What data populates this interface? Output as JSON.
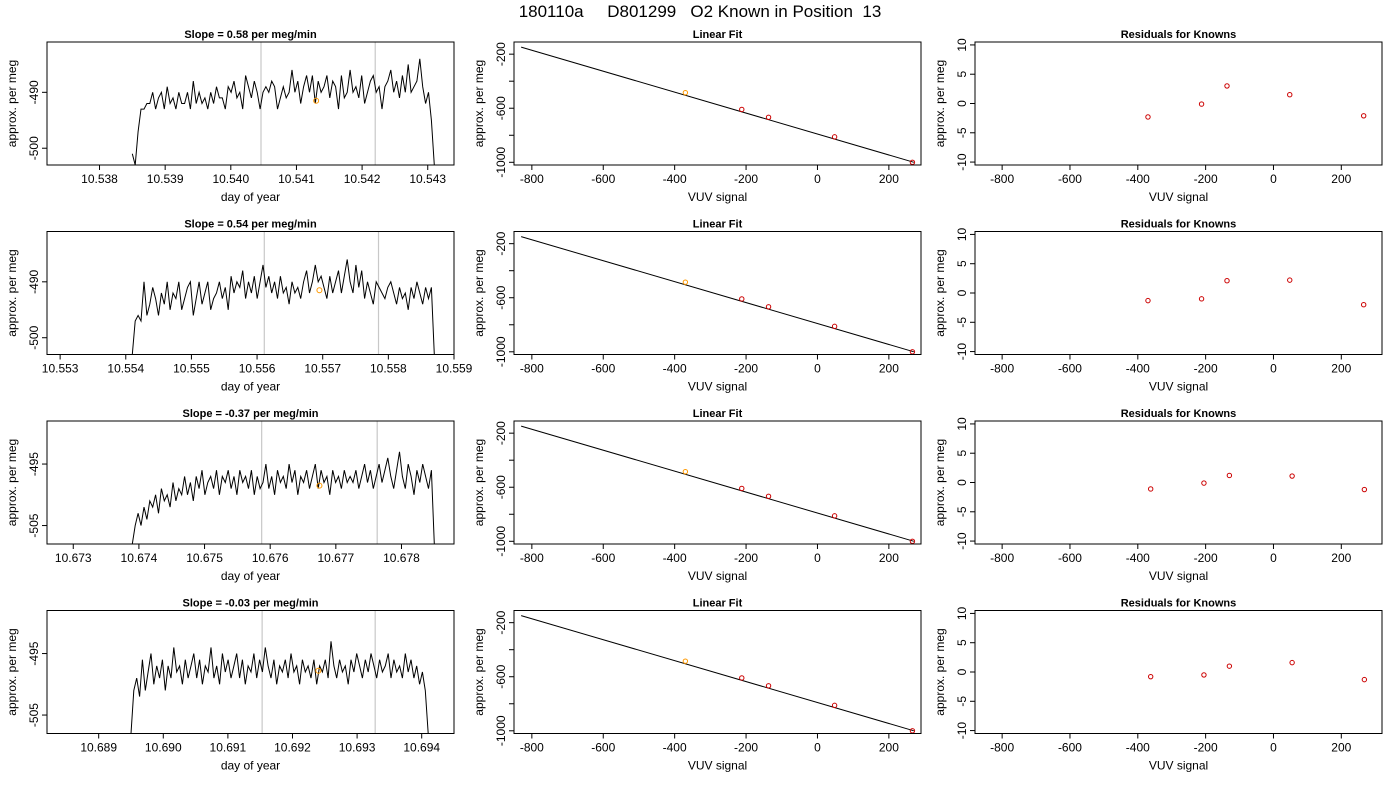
{
  "figure": {
    "title": "180110a     D801299   O2 Known in Position  13"
  },
  "chart_data": [
    {
      "type": "line",
      "row": 0,
      "column": 0,
      "title": "Slope =  0.58  per meg/min",
      "xlabel": "day of year",
      "ylabel": "approx. per meg",
      "xlim": [
        10.5372,
        10.5434
      ],
      "ylim": [
        -503,
        -481
      ],
      "xticks": [
        10.538,
        10.539,
        10.54,
        10.541,
        10.542,
        10.543
      ],
      "xtick_labels": [
        "10.538",
        "10.539",
        "10.540",
        "10.541",
        "10.542",
        "10.543"
      ],
      "yticks": [
        -500,
        -490
      ],
      "ytick_labels": [
        "-500",
        "-490"
      ],
      "vlines": [
        10.54046,
        10.5422
      ],
      "highlight_point": {
        "x": 10.5413,
        "y": -491.5
      },
      "series": [
        {
          "x_start": 10.5385,
          "x_end": 10.5431,
          "values": [
            -501,
            -503,
            -497,
            -493,
            -493,
            -492,
            -492,
            -490,
            -493,
            -491,
            -490,
            -493,
            -489,
            -492,
            -491,
            -493,
            -490,
            -492,
            -492,
            -490,
            -493,
            -488,
            -492,
            -490,
            -492,
            -491,
            -493,
            -490,
            -492,
            -489,
            -491,
            -491,
            -493,
            -489,
            -490,
            -488,
            -491,
            -490,
            -493,
            -487,
            -489,
            -491,
            -488,
            -490,
            -493,
            -490,
            -489,
            -490,
            -488,
            -489,
            -493,
            -491,
            -489,
            -491,
            -490,
            -486,
            -490,
            -488,
            -492,
            -489,
            -487,
            -490,
            -487,
            -492,
            -488,
            -490,
            -489,
            -487,
            -491,
            -488,
            -489,
            -493,
            -487,
            -491,
            -490,
            -486,
            -490,
            -489,
            -491,
            -487,
            -492,
            -490,
            -488,
            -487,
            -490,
            -489,
            -493,
            -489,
            -488,
            -486,
            -490,
            -488,
            -491,
            -487,
            -490,
            -485,
            -490,
            -489,
            -488,
            -484,
            -489,
            -492,
            -490,
            -495,
            -503
          ]
        }
      ]
    },
    {
      "type": "scatter",
      "row": 0,
      "column": 1,
      "title": "Linear Fit",
      "xlabel": "VUV signal",
      "ylabel": "approx. per meg",
      "xlim": [
        -850,
        290
      ],
      "ylim": [
        -1020,
        -110
      ],
      "xticks": [
        -800,
        -600,
        -400,
        -200,
        0,
        200
      ],
      "xtick_labels": [
        "-800",
        "-600",
        "-400",
        "-200",
        "0",
        "200"
      ],
      "yticks": [
        -1000,
        -600,
        -200
      ],
      "ytick_labels": [
        "-1000",
        "-600",
        "-200"
      ],
      "fit_line": {
        "x": [
          -830,
          270
        ],
        "y": [
          -148,
          -1000
        ]
      },
      "points": {
        "x": [
          -370,
          -212,
          -137,
          48,
          266
        ],
        "y": [
          -485,
          -609,
          -667,
          -812,
          -1000
        ]
      },
      "highlight_index": 0
    },
    {
      "type": "scatter",
      "row": 0,
      "column": 2,
      "title": "Residuals for Knowns",
      "xlabel": "VUV signal",
      "ylabel": "approx. per meg",
      "xlim": [
        -880,
        320
      ],
      "ylim": [
        -10.5,
        10.5
      ],
      "xticks": [
        -800,
        -600,
        -400,
        -200,
        0,
        200
      ],
      "xtick_labels": [
        "-800",
        "-600",
        "-400",
        "-200",
        "0",
        "200"
      ],
      "yticks": [
        -10,
        -5,
        0,
        5,
        10
      ],
      "ytick_labels": [
        "-10",
        "-5",
        "0",
        "5",
        "10"
      ],
      "points": {
        "x": [
          -370,
          -212,
          -137,
          48,
          266
        ],
        "y": [
          -2.3,
          -0.1,
          3.0,
          1.5,
          -2.1
        ]
      }
    },
    {
      "type": "line",
      "row": 1,
      "column": 0,
      "title": "Slope =  0.54  per meg/min",
      "xlabel": "day of year",
      "ylabel": "approx. per meg",
      "xlim": [
        10.5528,
        10.559
      ],
      "ylim": [
        -503,
        -481
      ],
      "xticks": [
        10.553,
        10.554,
        10.555,
        10.556,
        10.557,
        10.558,
        10.559
      ],
      "xtick_labels": [
        "10.553",
        "10.554",
        "10.555",
        "10.556",
        "10.557",
        "10.558",
        "10.559"
      ],
      "yticks": [
        -500,
        -490
      ],
      "ytick_labels": [
        "-500",
        "-490"
      ],
      "vlines": [
        10.55611,
        10.55785
      ],
      "highlight_point": {
        "x": 10.55695,
        "y": -491.5
      },
      "series": [
        {
          "x_start": 10.5541,
          "x_end": 10.5587,
          "values": [
            -503,
            -497,
            -496,
            -497,
            -490,
            -496,
            -494,
            -491,
            -493,
            -496,
            -492,
            -494,
            -490,
            -495,
            -492,
            -493,
            -490,
            -495,
            -493,
            -491,
            -490,
            -496,
            -493,
            -490,
            -494,
            -492,
            -490,
            -495,
            -493,
            -492,
            -490,
            -493,
            -491,
            -495,
            -489,
            -492,
            -490,
            -491,
            -488,
            -493,
            -490,
            -492,
            -489,
            -493,
            -490,
            -487,
            -491,
            -489,
            -492,
            -490,
            -493,
            -489,
            -492,
            -491,
            -494,
            -490,
            -492,
            -491,
            -493,
            -490,
            -488,
            -492,
            -490,
            -487,
            -490,
            -489,
            -491,
            -493,
            -489,
            -492,
            -490,
            -488,
            -492,
            -489,
            -486,
            -490,
            -492,
            -487,
            -491,
            -488,
            -493,
            -490,
            -492,
            -494,
            -490,
            -491,
            -492,
            -493,
            -491,
            -490,
            -492,
            -494,
            -491,
            -493,
            -492,
            -495,
            -491,
            -493,
            -490,
            -492,
            -494,
            -491,
            -493,
            -491,
            -503
          ]
        }
      ]
    },
    {
      "type": "scatter",
      "row": 1,
      "column": 1,
      "title": "Linear Fit",
      "xlabel": "VUV signal",
      "ylabel": "approx. per meg",
      "xlim": [
        -850,
        290
      ],
      "ylim": [
        -1020,
        -110
      ],
      "xticks": [
        -800,
        -600,
        -400,
        -200,
        0,
        200
      ],
      "xtick_labels": [
        "-800",
        "-600",
        "-400",
        "-200",
        "0",
        "200"
      ],
      "yticks": [
        -1000,
        -600,
        -200
      ],
      "ytick_labels": [
        "-1000",
        "-600",
        "-200"
      ],
      "fit_line": {
        "x": [
          -830,
          270
        ],
        "y": [
          -148,
          -1000
        ]
      },
      "points": {
        "x": [
          -370,
          -212,
          -137,
          48,
          266
        ],
        "y": [
          -485,
          -609,
          -667,
          -812,
          -1000
        ]
      },
      "highlight_index": 0
    },
    {
      "type": "scatter",
      "row": 1,
      "column": 2,
      "title": "Residuals for Knowns",
      "xlabel": "VUV signal",
      "ylabel": "approx. per meg",
      "xlim": [
        -880,
        320
      ],
      "ylim": [
        -10.5,
        10.5
      ],
      "xticks": [
        -800,
        -600,
        -400,
        -200,
        0,
        200
      ],
      "xtick_labels": [
        "-800",
        "-600",
        "-400",
        "-200",
        "0",
        "200"
      ],
      "yticks": [
        -10,
        -5,
        0,
        5,
        10
      ],
      "ytick_labels": [
        "-10",
        "-5",
        "0",
        "5",
        "10"
      ],
      "points": {
        "x": [
          -370,
          -212,
          -137,
          48,
          266
        ],
        "y": [
          -1.3,
          -1.0,
          2.1,
          2.2,
          -2.0
        ]
      }
    },
    {
      "type": "line",
      "row": 2,
      "column": 0,
      "title": "Slope =  -0.37  per meg/min",
      "xlabel": "day of year",
      "ylabel": "approx. per meg",
      "xlim": [
        10.6726,
        10.6788
      ],
      "ylim": [
        -508,
        -488
      ],
      "xticks": [
        10.673,
        10.674,
        10.675,
        10.676,
        10.677,
        10.678
      ],
      "xtick_labels": [
        "10.673",
        "10.674",
        "10.675",
        "10.676",
        "10.677",
        "10.678"
      ],
      "yticks": [
        -505,
        -495
      ],
      "ytick_labels": [
        "-505",
        "-495"
      ],
      "vlines": [
        10.67587,
        10.67763
      ],
      "highlight_point": {
        "x": 10.67675,
        "y": -498.5
      },
      "series": [
        {
          "x_start": 10.6739,
          "x_end": 10.6785,
          "values": [
            -508,
            -505,
            -503,
            -505,
            -502,
            -504,
            -501,
            -502,
            -500,
            -503,
            -499,
            -501,
            -500,
            -502,
            -498,
            -501,
            -499,
            -500,
            -497,
            -500,
            -498,
            -501,
            -497,
            -499,
            -496,
            -500,
            -498,
            -497,
            -499,
            -496,
            -500,
            -497,
            -498,
            -496,
            -499,
            -497,
            -500,
            -496,
            -498,
            -497,
            -499,
            -496,
            -500,
            -497,
            -499,
            -498,
            -495,
            -499,
            -497,
            -500,
            -496,
            -498,
            -497,
            -499,
            -495,
            -498,
            -496,
            -500,
            -497,
            -498,
            -496,
            -499,
            -497,
            -495,
            -499,
            -496,
            -498,
            -497,
            -500,
            -496,
            -498,
            -497,
            -499,
            -496,
            -498,
            -497,
            -498,
            -496,
            -499,
            -497,
            -495,
            -498,
            -496,
            -499,
            -497,
            -495,
            -498,
            -496,
            -494,
            -497,
            -499,
            -496,
            -493,
            -497,
            -499,
            -495,
            -497,
            -500,
            -496,
            -498,
            -495,
            -497,
            -499,
            -496,
            -508
          ]
        }
      ]
    },
    {
      "type": "scatter",
      "row": 2,
      "column": 1,
      "title": "Linear Fit",
      "xlabel": "VUV signal",
      "ylabel": "approx. per meg",
      "xlim": [
        -850,
        290
      ],
      "ylim": [
        -1020,
        -110
      ],
      "xticks": [
        -800,
        -600,
        -400,
        -200,
        0,
        200
      ],
      "xtick_labels": [
        "-800",
        "-600",
        "-400",
        "-200",
        "0",
        "200"
      ],
      "yticks": [
        -1000,
        -600,
        -200
      ],
      "ytick_labels": [
        "-1000",
        "-600",
        "-200"
      ],
      "fit_line": {
        "x": [
          -830,
          270
        ],
        "y": [
          -148,
          -1000
        ]
      },
      "points": {
        "x": [
          -370,
          -212,
          -137,
          48,
          266
        ],
        "y": [
          -485,
          -609,
          -667,
          -812,
          -1000
        ]
      },
      "highlight_index": 0
    },
    {
      "type": "scatter",
      "row": 2,
      "column": 2,
      "title": "Residuals for Knowns",
      "xlabel": "VUV signal",
      "ylabel": "approx. per meg",
      "xlim": [
        -880,
        320
      ],
      "ylim": [
        -10.5,
        10.5
      ],
      "xticks": [
        -800,
        -600,
        -400,
        -200,
        0,
        200
      ],
      "xtick_labels": [
        "-800",
        "-600",
        "-400",
        "-200",
        "0",
        "200"
      ],
      "yticks": [
        -10,
        -5,
        0,
        5,
        10
      ],
      "ytick_labels": [
        "-10",
        "-5",
        "0",
        "5",
        "10"
      ],
      "points": {
        "x": [
          -362,
          -205,
          -130,
          55,
          268
        ],
        "y": [
          -1.1,
          -0.1,
          1.2,
          1.1,
          -1.2
        ]
      }
    },
    {
      "type": "line",
      "row": 3,
      "column": 0,
      "title": "Slope =  -0.03  per meg/min",
      "xlabel": "day of year",
      "ylabel": "approx. per meg",
      "xlim": [
        10.6882,
        10.6945
      ],
      "ylim": [
        -508,
        -488
      ],
      "xticks": [
        10.689,
        10.69,
        10.691,
        10.692,
        10.693,
        10.694
      ],
      "xtick_labels": [
        "10.689",
        "10.690",
        "10.691",
        "10.692",
        "10.693",
        "10.694"
      ],
      "yticks": [
        -505,
        -495
      ],
      "ytick_labels": [
        "-505",
        "-495"
      ],
      "vlines": [
        10.69153,
        10.69328
      ],
      "highlight_point": {
        "x": 10.6924,
        "y": -497.8
      },
      "series": [
        {
          "x_start": 10.6895,
          "x_end": 10.6941,
          "values": [
            -508,
            -501,
            -499,
            -502,
            -496,
            -501,
            -498,
            -495,
            -500,
            -497,
            -499,
            -496,
            -501,
            -497,
            -499,
            -494,
            -498,
            -497,
            -500,
            -496,
            -499,
            -497,
            -495,
            -499,
            -496,
            -500,
            -497,
            -498,
            -494,
            -499,
            -497,
            -500,
            -495,
            -498,
            -496,
            -499,
            -497,
            -495,
            -499,
            -496,
            -500,
            -497,
            -498,
            -495,
            -499,
            -496,
            -498,
            -494,
            -497,
            -499,
            -496,
            -500,
            -497,
            -498,
            -496,
            -499,
            -495,
            -498,
            -497,
            -500,
            -496,
            -498,
            -497,
            -499,
            -496,
            -500,
            -497,
            -498,
            -496,
            -499,
            -493,
            -497,
            -499,
            -496,
            -498,
            -497,
            -500,
            -496,
            -498,
            -495,
            -497,
            -499,
            -496,
            -498,
            -495,
            -497,
            -499,
            -496,
            -498,
            -497,
            -495,
            -499,
            -496,
            -498,
            -497,
            -499,
            -495,
            -498,
            -496,
            -499,
            -497,
            -500,
            -498,
            -501,
            -508
          ]
        }
      ]
    },
    {
      "type": "scatter",
      "row": 3,
      "column": 1,
      "title": "Linear Fit",
      "xlabel": "VUV signal",
      "ylabel": "approx. per meg",
      "xlim": [
        -850,
        290
      ],
      "ylim": [
        -1020,
        -110
      ],
      "xticks": [
        -800,
        -600,
        -400,
        -200,
        0,
        200
      ],
      "xtick_labels": [
        "-800",
        "-600",
        "-400",
        "-200",
        "0",
        "200"
      ],
      "yticks": [
        -1000,
        -600,
        -200
      ],
      "ytick_labels": [
        "-1000",
        "-600",
        "-200"
      ],
      "fit_line": {
        "x": [
          -830,
          270
        ],
        "y": [
          -148,
          -1000
        ]
      },
      "points": {
        "x": [
          -370,
          -212,
          -137,
          48,
          266
        ],
        "y": [
          -485,
          -609,
          -667,
          -812,
          -1000
        ]
      },
      "highlight_index": 0
    },
    {
      "type": "scatter",
      "row": 3,
      "column": 2,
      "title": "Residuals for Knowns",
      "xlabel": "VUV signal",
      "ylabel": "approx. per meg",
      "xlim": [
        -880,
        320
      ],
      "ylim": [
        -10.5,
        10.5
      ],
      "xticks": [
        -800,
        -600,
        -400,
        -200,
        0,
        200
      ],
      "xtick_labels": [
        "-800",
        "-600",
        "-400",
        "-200",
        "0",
        "200"
      ],
      "yticks": [
        -10,
        -5,
        0,
        5,
        10
      ],
      "ytick_labels": [
        "-10",
        "-5",
        "0",
        "5",
        "10"
      ],
      "points": {
        "x": [
          -362,
          -205,
          -130,
          55,
          268
        ],
        "y": [
          -0.8,
          -0.5,
          1.0,
          1.6,
          -1.3
        ]
      }
    }
  ],
  "colors": {
    "line": "#000000",
    "vline": "#c8c8c8",
    "highlight": "#ff9900",
    "point": "#cc0000",
    "fit": "#000000"
  }
}
